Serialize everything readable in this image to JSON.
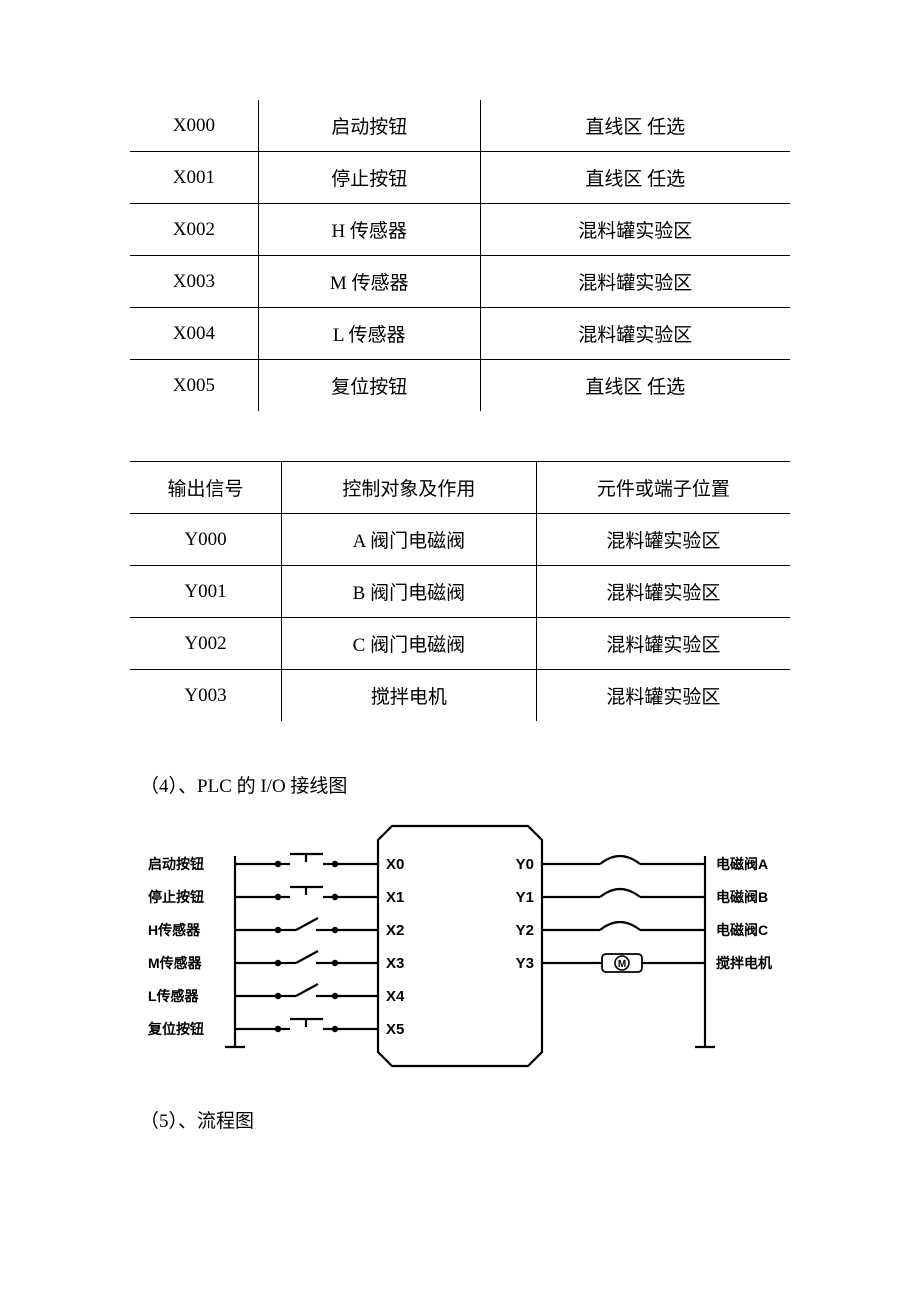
{
  "table1": {
    "rows": [
      [
        "X000",
        "启动按钮",
        "直线区 任选"
      ],
      [
        "X001",
        "停止按钮",
        "直线区 任选"
      ],
      [
        "X002",
        "H 传感器",
        "混料罐实验区"
      ],
      [
        "X003",
        "M 传感器",
        "混料罐实验区"
      ],
      [
        "X004",
        "L 传感器",
        "混料罐实验区"
      ],
      [
        "X005",
        "复位按钮",
        "直线区 任选"
      ]
    ]
  },
  "table2": {
    "header": [
      "输出信号",
      "控制对象及作用",
      "元件或端子位置"
    ],
    "rows": [
      [
        "Y000",
        "A 阀门电磁阀",
        "混料罐实验区"
      ],
      [
        "Y001",
        "B 阀门电磁阀",
        "混料罐实验区"
      ],
      [
        "Y002",
        "C 阀门电磁阀",
        "混料罐实验区"
      ],
      [
        "Y003",
        "搅拌电机",
        "混料罐实验区"
      ]
    ]
  },
  "heading4": "（4）、PLC 的 I/O 接线图",
  "heading5": "（5）、流程图",
  "diagram": {
    "inputs": [
      {
        "label": "启动按钮",
        "pin": "X0",
        "type": "button"
      },
      {
        "label": "停止按钮",
        "pin": "X1",
        "type": "button"
      },
      {
        "label": "H传感器",
        "pin": "X2",
        "type": "switch"
      },
      {
        "label": "M传感器",
        "pin": "X3",
        "type": "switch"
      },
      {
        "label": "L传感器",
        "pin": "X4",
        "type": "switch"
      },
      {
        "label": "复位按钮",
        "pin": "X5",
        "type": "button"
      }
    ],
    "outputs": [
      {
        "label": "电磁阀A",
        "pin": "Y0",
        "type": "coil"
      },
      {
        "label": "电磁阀B",
        "pin": "Y1",
        "type": "coil"
      },
      {
        "label": "电磁阀C",
        "pin": "Y2",
        "type": "coil"
      },
      {
        "label": "搅拌电机",
        "pin": "Y3",
        "type": "motor"
      }
    ],
    "colors": {
      "stroke": "#000000",
      "bg": "#ffffff",
      "text": "#000000"
    },
    "font_size_label": 14,
    "font_size_pin": 15,
    "stroke_width": 2.2
  }
}
